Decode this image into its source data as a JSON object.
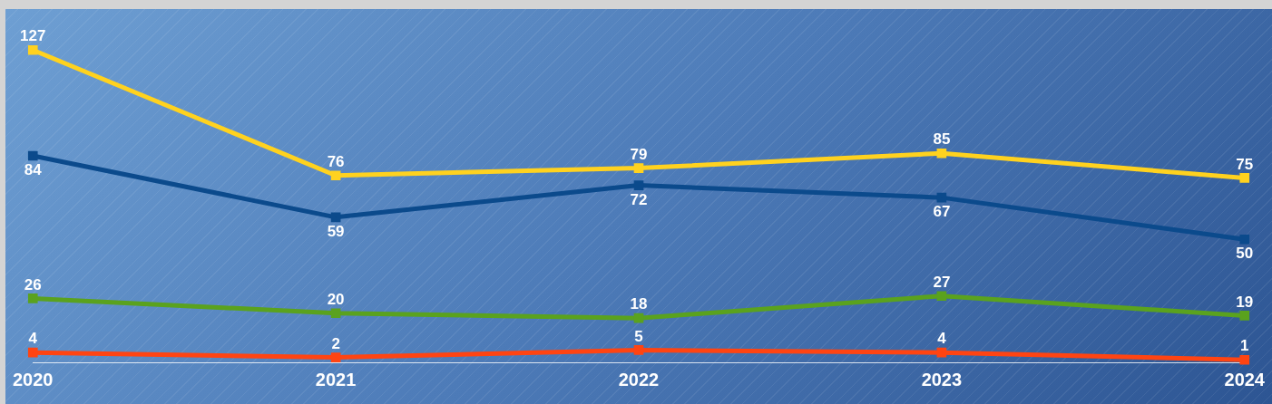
{
  "chart_data": {
    "type": "line",
    "categories": [
      "2020",
      "2021",
      "2022",
      "2023",
      "2024"
    ],
    "data_labels": true,
    "grid": false,
    "legend": false,
    "marker": "square",
    "line_style": "solid",
    "series": [
      {
        "color": "#ffd21f",
        "values": [
          127,
          76,
          79,
          85,
          75
        ]
      },
      {
        "color": "#0b4a8c",
        "values": [
          84,
          59,
          72,
          67,
          50
        ]
      },
      {
        "color": "#5aa21e",
        "values": [
          26,
          20,
          18,
          27,
          19
        ]
      },
      {
        "color": "#ff4412",
        "values": [
          4,
          2,
          5,
          4,
          1
        ]
      }
    ]
  }
}
